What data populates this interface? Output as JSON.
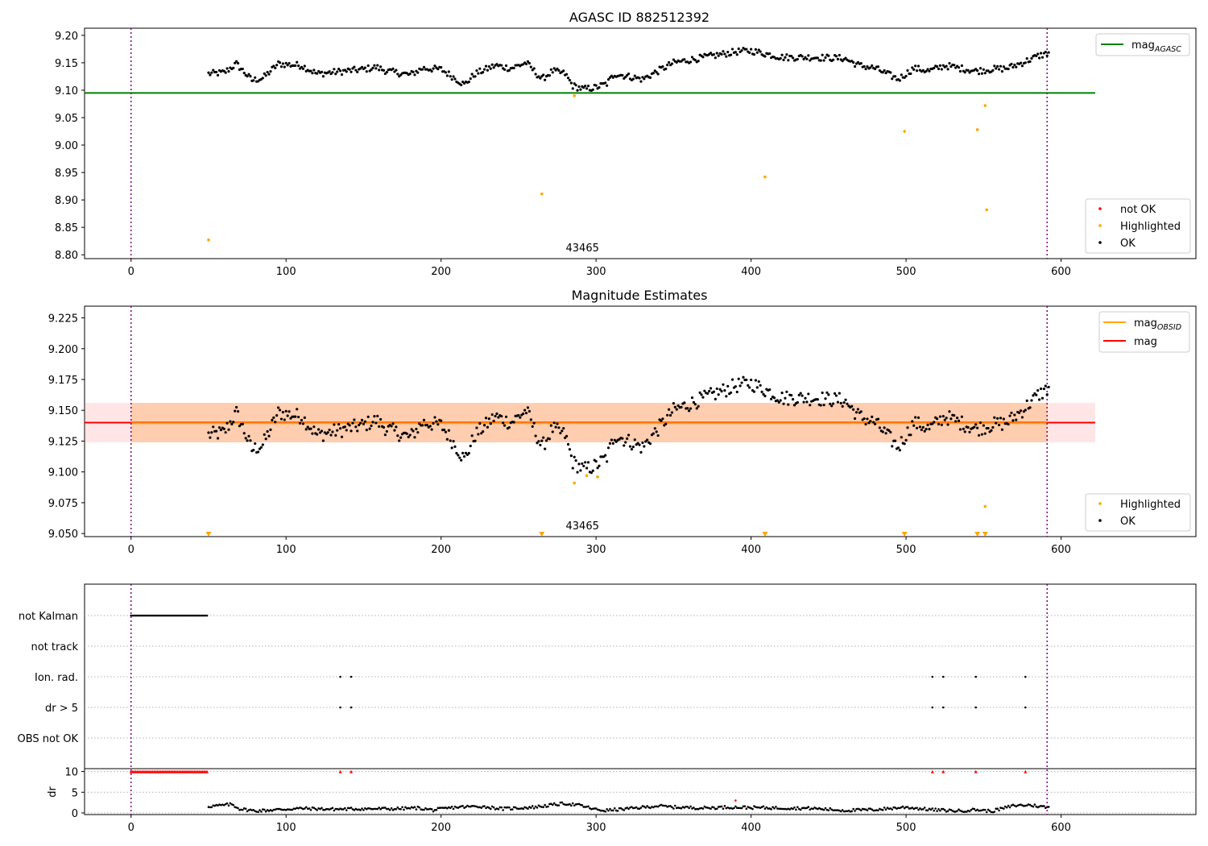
{
  "chart_data": [
    {
      "type": "scatter",
      "title": "AGASC ID 882512392",
      "xlim": [
        -30,
        687
      ],
      "ylim": [
        8.793,
        9.213
      ],
      "xticks": [
        0,
        100,
        200,
        300,
        400,
        500,
        600
      ],
      "yticks": [
        "8.80",
        "8.85",
        "8.90",
        "8.95",
        "9.00",
        "9.05",
        "9.10",
        "9.15",
        "9.20"
      ],
      "obsid_label": "43465",
      "obsid_label_x": 295,
      "vlines": [
        0,
        591
      ],
      "hline": {
        "name": "mag_AGASC",
        "legend_main": "mag",
        "legend_sub": "AGASC",
        "y": 9.095,
        "x_range": [
          -30,
          622
        ],
        "color": "#008000"
      },
      "legends": {
        "upper_right": [
          {
            "label": "mag",
            "sub": "AGASC",
            "kind": "line",
            "color": "#008000"
          }
        ],
        "lower_right": [
          {
            "label": "not OK",
            "kind": "dot",
            "color": "#ff0000"
          },
          {
            "label": "Highlighted",
            "kind": "dot",
            "color": "#ffa500"
          },
          {
            "label": "OK",
            "kind": "dot",
            "color": "#000000"
          }
        ]
      },
      "ok_points": {
        "name": "OK",
        "color": "#000000",
        "x_start": 50,
        "x_end": 592,
        "anchors": [
          [
            50,
            9.13
          ],
          [
            60,
            9.132
          ],
          [
            68,
            9.148
          ],
          [
            78,
            9.118
          ],
          [
            85,
            9.122
          ],
          [
            95,
            9.148
          ],
          [
            110,
            9.145
          ],
          [
            120,
            9.13
          ],
          [
            135,
            9.134
          ],
          [
            150,
            9.138
          ],
          [
            158,
            9.142
          ],
          [
            165,
            9.135
          ],
          [
            180,
            9.128
          ],
          [
            188,
            9.14
          ],
          [
            200,
            9.138
          ],
          [
            210,
            9.12
          ],
          [
            215,
            9.11
          ],
          [
            222,
            9.13
          ],
          [
            235,
            9.145
          ],
          [
            245,
            9.14
          ],
          [
            255,
            9.15
          ],
          [
            265,
            9.12
          ],
          [
            272,
            9.135
          ],
          [
            280,
            9.13
          ],
          [
            285,
            9.108
          ],
          [
            292,
            9.102
          ],
          [
            300,
            9.105
          ],
          [
            307,
            9.112
          ],
          [
            312,
            9.13
          ],
          [
            330,
            9.12
          ],
          [
            340,
            9.135
          ],
          [
            350,
            9.15
          ],
          [
            370,
            9.16
          ],
          [
            390,
            9.17
          ],
          [
            400,
            9.172
          ],
          [
            420,
            9.16
          ],
          [
            440,
            9.16
          ],
          [
            460,
            9.158
          ],
          [
            470,
            9.145
          ],
          [
            480,
            9.14
          ],
          [
            495,
            9.12
          ],
          [
            505,
            9.14
          ],
          [
            515,
            9.135
          ],
          [
            525,
            9.145
          ],
          [
            535,
            9.14
          ],
          [
            545,
            9.135
          ],
          [
            555,
            9.138
          ],
          [
            565,
            9.14
          ],
          [
            575,
            9.15
          ],
          [
            585,
            9.162
          ],
          [
            592,
            9.168
          ]
        ],
        "noise": 0.006
      },
      "highlighted_points": {
        "name": "Highlighted",
        "color": "#ffa500",
        "x": [
          50,
          265,
          286,
          409,
          499,
          546,
          551,
          552
        ],
        "y": [
          8.827,
          8.911,
          9.09,
          8.942,
          9.025,
          9.028,
          9.072,
          8.882
        ]
      }
    },
    {
      "type": "scatter",
      "title": "Magnitude Estimates",
      "xlim": [
        -30,
        687
      ],
      "ylim": [
        9.0475,
        9.2345
      ],
      "xticks": [
        0,
        100,
        200,
        300,
        400,
        500,
        600
      ],
      "yticks": [
        "9.050",
        "9.075",
        "9.100",
        "9.125",
        "9.150",
        "9.175",
        "9.200",
        "9.225"
      ],
      "obsid_label": "43465",
      "obsid_label_x": 295,
      "vlines": [
        0,
        591
      ],
      "mag_line": {
        "name": "mag",
        "y": 9.14,
        "x_range": [
          -30,
          622
        ],
        "color": "#ff0000"
      },
      "mag_obsid_line": {
        "name": "mag_OBSID",
        "y": 9.1395,
        "x_range": [
          0,
          591
        ],
        "color": "#ffa500"
      },
      "band_mag": {
        "y_range": [
          9.124,
          9.156
        ],
        "x_range": [
          -30,
          622
        ],
        "color": "#ff6e6e",
        "opacity": 0.18
      },
      "band_obsid": {
        "y_range": [
          9.124,
          9.156
        ],
        "x_range": [
          0,
          591
        ],
        "color": "#ffa04b",
        "opacity": 0.35
      },
      "legends": {
        "upper_right": [
          {
            "label": "mag",
            "sub": "OBSID",
            "kind": "line",
            "color": "#ffa500"
          },
          {
            "label": "mag",
            "sub": "",
            "kind": "line",
            "color": "#ff0000"
          }
        ],
        "lower_right": [
          {
            "label": "Highlighted",
            "kind": "dot",
            "color": "#ffa500"
          },
          {
            "label": "OK",
            "kind": "dot",
            "color": "#000000"
          }
        ]
      },
      "highlighted_points": {
        "name": "Highlighted",
        "color": "#ffa500",
        "x": [
          286,
          294,
          301,
          551
        ],
        "y": [
          9.091,
          9.097,
          9.096,
          9.072
        ]
      },
      "clipped_markers": {
        "name": "Highlighted (below range)",
        "color": "#ffa500",
        "x": [
          50,
          265,
          409,
          499,
          546,
          551
        ]
      }
    },
    {
      "type": "scatter",
      "xlim": [
        -30,
        687
      ],
      "xticks": [
        0,
        100,
        200,
        300,
        400,
        500,
        600
      ],
      "vlines": [
        0,
        591
      ],
      "flag_rows": [
        "not Kalman",
        "not track",
        "Ion. rad.",
        "dr > 5",
        "OBS not OK"
      ],
      "flags": {
        "not Kalman": {
          "x_range": [
            0,
            49
          ]
        },
        "Ion. rad.": {
          "x": [
            135,
            142,
            517,
            524,
            545,
            577
          ]
        },
        "dr > 5": {
          "x": [
            135,
            142,
            517,
            524,
            545,
            577
          ]
        }
      },
      "dr_axis": {
        "ylabel": "dr",
        "ylim": [
          -0.2,
          10.5
        ],
        "yticks": [
          0,
          5,
          10
        ],
        "clipped_flags": {
          "color": "#ff0000",
          "value": 10,
          "x_range": [
            0,
            49
          ],
          "x_extra": [
            135,
            142,
            517,
            524,
            545,
            577
          ]
        },
        "outlier": {
          "x": 390,
          "y": 3.0,
          "color": "#ff0000"
        },
        "anchors": [
          [
            50,
            1.6
          ],
          [
            58,
            1.8
          ],
          [
            65,
            2.1
          ],
          [
            70,
            1.0
          ],
          [
            80,
            0.5
          ],
          [
            95,
            0.8
          ],
          [
            110,
            1.1
          ],
          [
            130,
            0.9
          ],
          [
            150,
            1.0
          ],
          [
            170,
            1.0
          ],
          [
            185,
            1.2
          ],
          [
            195,
            0.7
          ],
          [
            210,
            1.4
          ],
          [
            225,
            1.6
          ],
          [
            240,
            1.0
          ],
          [
            260,
            1.4
          ],
          [
            280,
            2.3
          ],
          [
            290,
            1.8
          ],
          [
            300,
            0.8
          ],
          [
            306,
            0.6
          ],
          [
            320,
            1.0
          ],
          [
            340,
            1.7
          ],
          [
            350,
            1.4
          ],
          [
            370,
            1.2
          ],
          [
            385,
            1.4
          ],
          [
            400,
            1.3
          ],
          [
            420,
            1.2
          ],
          [
            440,
            1.1
          ],
          [
            460,
            0.6
          ],
          [
            480,
            0.8
          ],
          [
            500,
            1.4
          ],
          [
            510,
            1.0
          ],
          [
            520,
            0.7
          ],
          [
            535,
            0.5
          ],
          [
            545,
            0.8
          ],
          [
            555,
            0.4
          ],
          [
            570,
            1.8
          ],
          [
            580,
            1.9
          ],
          [
            592,
            1.3
          ]
        ],
        "noise": 0.35
      }
    }
  ]
}
